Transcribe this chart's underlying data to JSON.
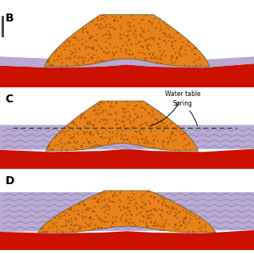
{
  "bg_color": "#ffffff",
  "red_color": "#cc1100",
  "orange_color": "#e8821a",
  "lavender_color": "#b0a0cc",
  "dot_color": "#8b4500",
  "hatch_color": "#9988bb",
  "label_B": "B",
  "label_C": "C",
  "label_D": "D",
  "water_table_label": "Water table",
  "spring_label": "Spring"
}
